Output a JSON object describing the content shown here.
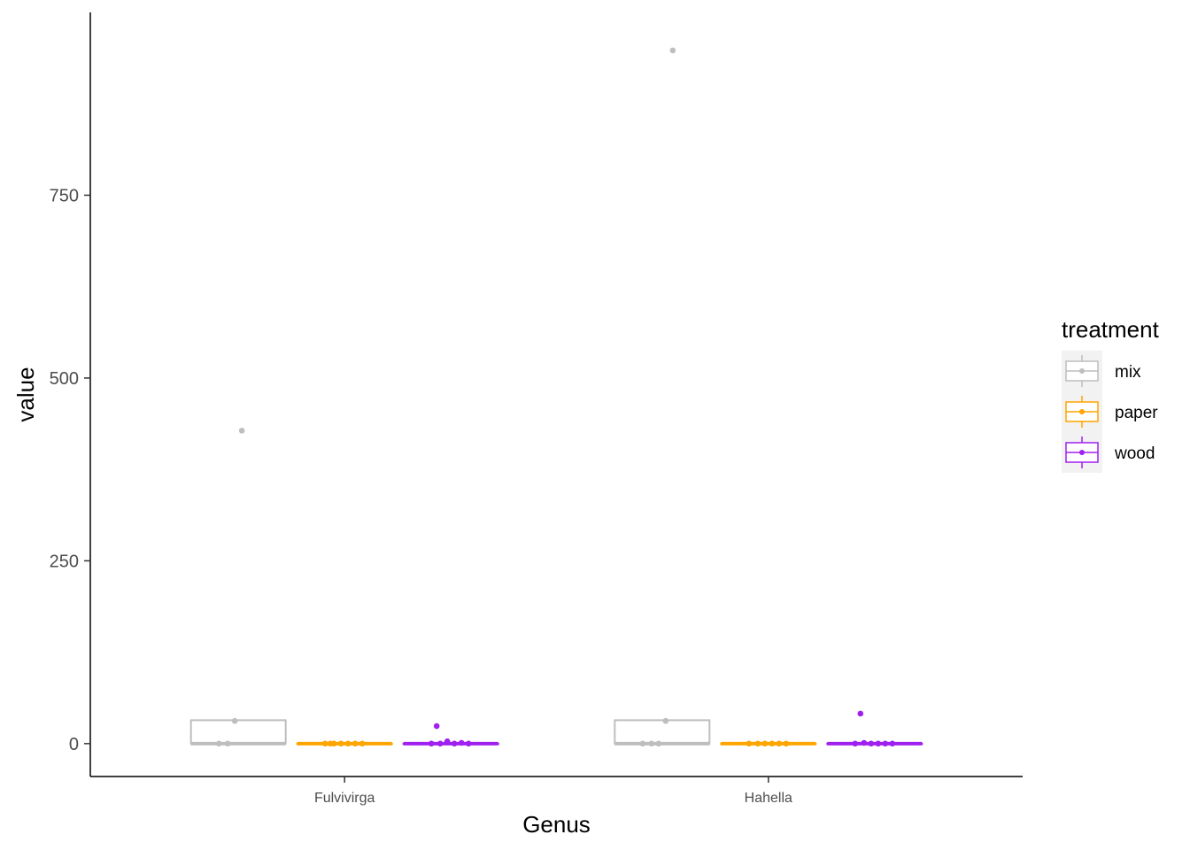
{
  "chart_data": {
    "type": "box",
    "xlabel": "Genus",
    "ylabel": "value",
    "categories": [
      "Fulvivirga",
      "Hahella"
    ],
    "ylim": [
      -45,
      1000
    ],
    "yticks": [
      0,
      250,
      500,
      750
    ],
    "legend": {
      "title": "treatment",
      "position": "right"
    },
    "series": [
      {
        "name": "mix",
        "color": "#bebebe",
        "boxes": [
          {
            "q1": 0,
            "median": 0,
            "q3": 32,
            "whisker_low": 0,
            "whisker_high": 32,
            "points": [
              0,
              0,
              31,
              428
            ]
          },
          {
            "q1": 0,
            "median": 0,
            "q3": 32,
            "whisker_low": 0,
            "whisker_high": 32,
            "points": [
              0,
              0,
              0,
              31,
              948
            ]
          }
        ]
      },
      {
        "name": "paper",
        "color": "#ffa500",
        "boxes": [
          {
            "q1": 0,
            "median": 0,
            "q3": 0,
            "whisker_low": 0,
            "whisker_high": 0,
            "points": [
              0,
              0,
              0,
              0,
              0,
              0,
              0
            ]
          },
          {
            "q1": 0,
            "median": 0,
            "q3": 0,
            "whisker_low": 0,
            "whisker_high": 0,
            "points": [
              0,
              0,
              0,
              0,
              0,
              0
            ]
          }
        ]
      },
      {
        "name": "wood",
        "color": "#a020f0",
        "boxes": [
          {
            "q1": 0,
            "median": 0,
            "q3": 0,
            "whisker_low": 0,
            "whisker_high": 0,
            "points": [
              0,
              0,
              3,
              0,
              1,
              0,
              24
            ]
          },
          {
            "q1": 0,
            "median": 0,
            "q3": 0,
            "whisker_low": 0,
            "whisker_high": 0,
            "points": [
              0,
              1,
              0,
              0,
              0,
              0,
              41
            ]
          }
        ]
      }
    ]
  }
}
